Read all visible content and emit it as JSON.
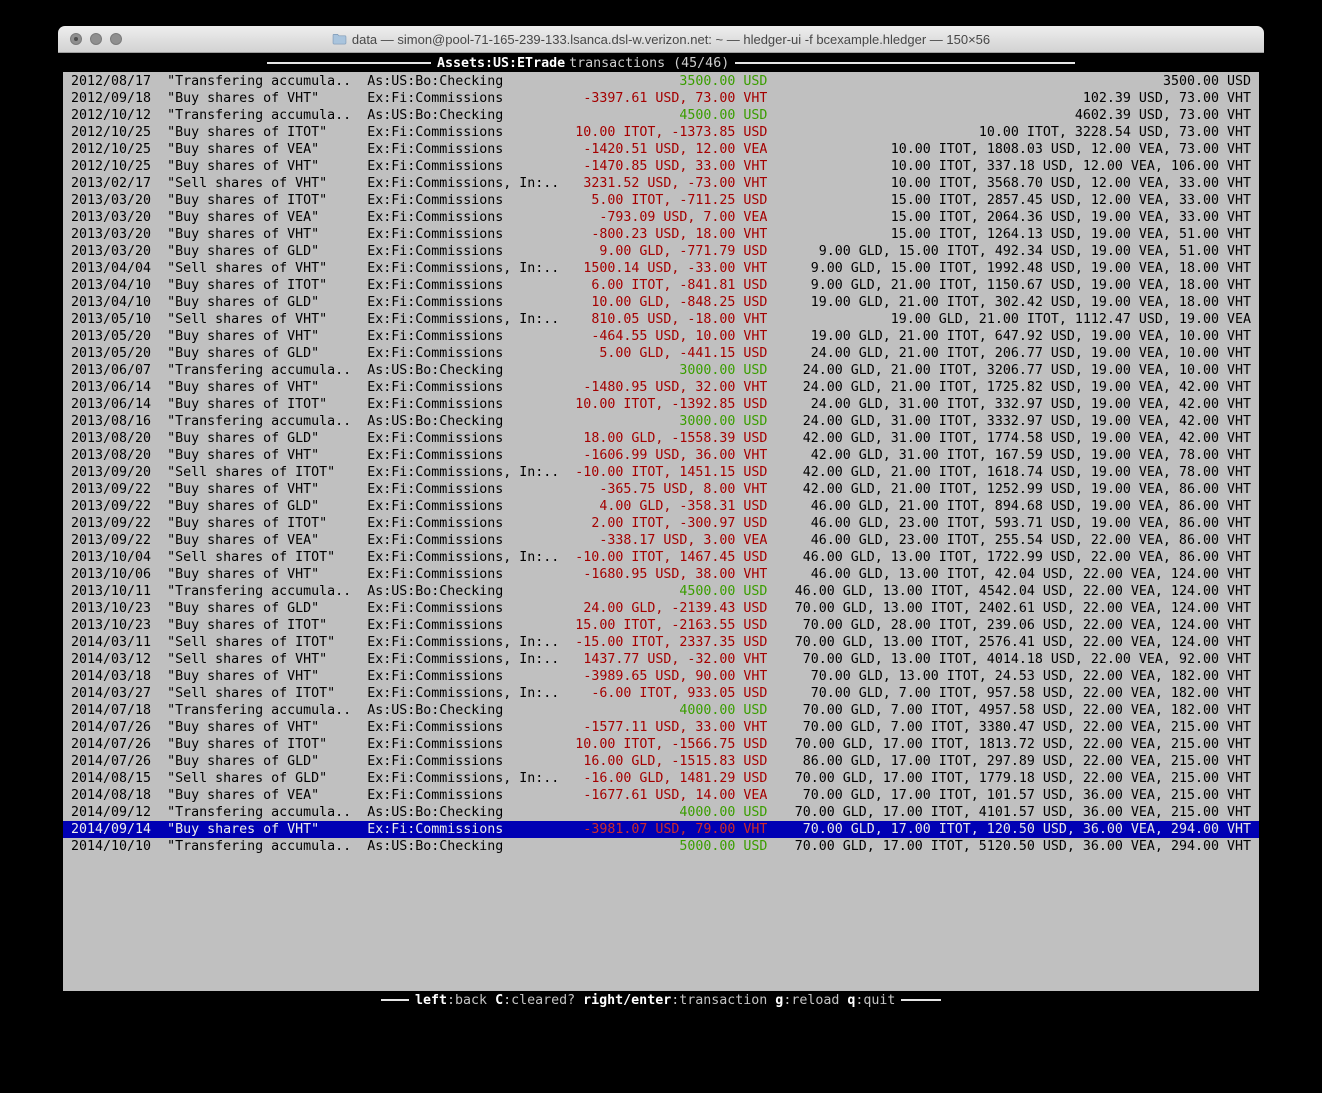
{
  "colors": {
    "terminal_bg": "#c0c0c0",
    "selection_bg": "#0000b4",
    "amount_negative": "#a40000",
    "amount_negative_selected": "#cc2a2a",
    "amount_positive": "#3a9d00"
  },
  "window": {
    "title": "data — simon@pool-71-165-239-133.lsanca.dsl-w.verizon.net: ~ — hledger-ui -f bcexample.hledger — 150×56"
  },
  "header": {
    "account": "Assets:US:ETrade",
    "label": "transactions (45/46)"
  },
  "footer": {
    "keys": [
      {
        "key": "left",
        "desc": ":back"
      },
      {
        "key": "C",
        "desc": ":cleared?"
      },
      {
        "key": "right/enter",
        "desc": ":transaction"
      },
      {
        "key": "g",
        "desc": ":reload"
      },
      {
        "key": "q",
        "desc": ":quit"
      }
    ]
  },
  "register": {
    "rows": [
      {
        "date": "2012/08/17",
        "desc": "\"Transfering accumula..",
        "acct": "As:US:Bo:Checking",
        "amt": "3500.00 USD",
        "sign": "pos",
        "bal": "3500.00 USD",
        "selected": false
      },
      {
        "date": "2012/09/18",
        "desc": "\"Buy shares of VHT\"",
        "acct": "Ex:Fi:Commissions",
        "amt": "-3397.61 USD, 73.00 VHT",
        "sign": "neg",
        "bal": "102.39 USD, 73.00 VHT",
        "selected": false
      },
      {
        "date": "2012/10/12",
        "desc": "\"Transfering accumula..",
        "acct": "As:US:Bo:Checking",
        "amt": "4500.00 USD",
        "sign": "pos",
        "bal": "4602.39 USD, 73.00 VHT",
        "selected": false
      },
      {
        "date": "2012/10/25",
        "desc": "\"Buy shares of ITOT\"",
        "acct": "Ex:Fi:Commissions",
        "amt": "10.00 ITOT, -1373.85 USD",
        "sign": "neg",
        "bal": "10.00 ITOT, 3228.54 USD, 73.00 VHT",
        "selected": false
      },
      {
        "date": "2012/10/25",
        "desc": "\"Buy shares of VEA\"",
        "acct": "Ex:Fi:Commissions",
        "amt": "-1420.51 USD, 12.00 VEA",
        "sign": "neg",
        "bal": "10.00 ITOT, 1808.03 USD, 12.00 VEA, 73.00 VHT",
        "selected": false
      },
      {
        "date": "2012/10/25",
        "desc": "\"Buy shares of VHT\"",
        "acct": "Ex:Fi:Commissions",
        "amt": "-1470.85 USD, 33.00 VHT",
        "sign": "neg",
        "bal": "10.00 ITOT, 337.18 USD, 12.00 VEA, 106.00 VHT",
        "selected": false
      },
      {
        "date": "2013/02/17",
        "desc": "\"Sell shares of VHT\"",
        "acct": "Ex:Fi:Commissions, In:..",
        "amt": "3231.52 USD, -73.00 VHT",
        "sign": "neg",
        "bal": "10.00 ITOT, 3568.70 USD, 12.00 VEA, 33.00 VHT",
        "selected": false
      },
      {
        "date": "2013/03/20",
        "desc": "\"Buy shares of ITOT\"",
        "acct": "Ex:Fi:Commissions",
        "amt": "5.00 ITOT, -711.25 USD",
        "sign": "neg",
        "bal": "15.00 ITOT, 2857.45 USD, 12.00 VEA, 33.00 VHT",
        "selected": false
      },
      {
        "date": "2013/03/20",
        "desc": "\"Buy shares of VEA\"",
        "acct": "Ex:Fi:Commissions",
        "amt": "-793.09 USD, 7.00 VEA",
        "sign": "neg",
        "bal": "15.00 ITOT, 2064.36 USD, 19.00 VEA, 33.00 VHT",
        "selected": false
      },
      {
        "date": "2013/03/20",
        "desc": "\"Buy shares of VHT\"",
        "acct": "Ex:Fi:Commissions",
        "amt": "-800.23 USD, 18.00 VHT",
        "sign": "neg",
        "bal": "15.00 ITOT, 1264.13 USD, 19.00 VEA, 51.00 VHT",
        "selected": false
      },
      {
        "date": "2013/03/20",
        "desc": "\"Buy shares of GLD\"",
        "acct": "Ex:Fi:Commissions",
        "amt": "9.00 GLD, -771.79 USD",
        "sign": "neg",
        "bal": "9.00 GLD, 15.00 ITOT, 492.34 USD, 19.00 VEA, 51.00 VHT",
        "selected": false
      },
      {
        "date": "2013/04/04",
        "desc": "\"Sell shares of VHT\"",
        "acct": "Ex:Fi:Commissions, In:..",
        "amt": "1500.14 USD, -33.00 VHT",
        "sign": "neg",
        "bal": "9.00 GLD, 15.00 ITOT, 1992.48 USD, 19.00 VEA, 18.00 VHT",
        "selected": false
      },
      {
        "date": "2013/04/10",
        "desc": "\"Buy shares of ITOT\"",
        "acct": "Ex:Fi:Commissions",
        "amt": "6.00 ITOT, -841.81 USD",
        "sign": "neg",
        "bal": "9.00 GLD, 21.00 ITOT, 1150.67 USD, 19.00 VEA, 18.00 VHT",
        "selected": false
      },
      {
        "date": "2013/04/10",
        "desc": "\"Buy shares of GLD\"",
        "acct": "Ex:Fi:Commissions",
        "amt": "10.00 GLD, -848.25 USD",
        "sign": "neg",
        "bal": "19.00 GLD, 21.00 ITOT, 302.42 USD, 19.00 VEA, 18.00 VHT",
        "selected": false
      },
      {
        "date": "2013/05/10",
        "desc": "\"Sell shares of VHT\"",
        "acct": "Ex:Fi:Commissions, In:..",
        "amt": "810.05 USD, -18.00 VHT",
        "sign": "neg",
        "bal": "19.00 GLD, 21.00 ITOT, 1112.47 USD, 19.00 VEA",
        "selected": false
      },
      {
        "date": "2013/05/20",
        "desc": "\"Buy shares of VHT\"",
        "acct": "Ex:Fi:Commissions",
        "amt": "-464.55 USD, 10.00 VHT",
        "sign": "neg",
        "bal": "19.00 GLD, 21.00 ITOT, 647.92 USD, 19.00 VEA, 10.00 VHT",
        "selected": false
      },
      {
        "date": "2013/05/20",
        "desc": "\"Buy shares of GLD\"",
        "acct": "Ex:Fi:Commissions",
        "amt": "5.00 GLD, -441.15 USD",
        "sign": "neg",
        "bal": "24.00 GLD, 21.00 ITOT, 206.77 USD, 19.00 VEA, 10.00 VHT",
        "selected": false
      },
      {
        "date": "2013/06/07",
        "desc": "\"Transfering accumula..",
        "acct": "As:US:Bo:Checking",
        "amt": "3000.00 USD",
        "sign": "pos",
        "bal": "24.00 GLD, 21.00 ITOT, 3206.77 USD, 19.00 VEA, 10.00 VHT",
        "selected": false
      },
      {
        "date": "2013/06/14",
        "desc": "\"Buy shares of VHT\"",
        "acct": "Ex:Fi:Commissions",
        "amt": "-1480.95 USD, 32.00 VHT",
        "sign": "neg",
        "bal": "24.00 GLD, 21.00 ITOT, 1725.82 USD, 19.00 VEA, 42.00 VHT",
        "selected": false
      },
      {
        "date": "2013/06/14",
        "desc": "\"Buy shares of ITOT\"",
        "acct": "Ex:Fi:Commissions",
        "amt": "10.00 ITOT, -1392.85 USD",
        "sign": "neg",
        "bal": "24.00 GLD, 31.00 ITOT, 332.97 USD, 19.00 VEA, 42.00 VHT",
        "selected": false
      },
      {
        "date": "2013/08/16",
        "desc": "\"Transfering accumula..",
        "acct": "As:US:Bo:Checking",
        "amt": "3000.00 USD",
        "sign": "pos",
        "bal": "24.00 GLD, 31.00 ITOT, 3332.97 USD, 19.00 VEA, 42.00 VHT",
        "selected": false
      },
      {
        "date": "2013/08/20",
        "desc": "\"Buy shares of GLD\"",
        "acct": "Ex:Fi:Commissions",
        "amt": "18.00 GLD, -1558.39 USD",
        "sign": "neg",
        "bal": "42.00 GLD, 31.00 ITOT, 1774.58 USD, 19.00 VEA, 42.00 VHT",
        "selected": false
      },
      {
        "date": "2013/08/20",
        "desc": "\"Buy shares of VHT\"",
        "acct": "Ex:Fi:Commissions",
        "amt": "-1606.99 USD, 36.00 VHT",
        "sign": "neg",
        "bal": "42.00 GLD, 31.00 ITOT, 167.59 USD, 19.00 VEA, 78.00 VHT",
        "selected": false
      },
      {
        "date": "2013/09/20",
        "desc": "\"Sell shares of ITOT\"",
        "acct": "Ex:Fi:Commissions, In:..",
        "amt": "-10.00 ITOT, 1451.15 USD",
        "sign": "neg",
        "bal": "42.00 GLD, 21.00 ITOT, 1618.74 USD, 19.00 VEA, 78.00 VHT",
        "selected": false
      },
      {
        "date": "2013/09/22",
        "desc": "\"Buy shares of VHT\"",
        "acct": "Ex:Fi:Commissions",
        "amt": "-365.75 USD, 8.00 VHT",
        "sign": "neg",
        "bal": "42.00 GLD, 21.00 ITOT, 1252.99 USD, 19.00 VEA, 86.00 VHT",
        "selected": false
      },
      {
        "date": "2013/09/22",
        "desc": "\"Buy shares of GLD\"",
        "acct": "Ex:Fi:Commissions",
        "amt": "4.00 GLD, -358.31 USD",
        "sign": "neg",
        "bal": "46.00 GLD, 21.00 ITOT, 894.68 USD, 19.00 VEA, 86.00 VHT",
        "selected": false
      },
      {
        "date": "2013/09/22",
        "desc": "\"Buy shares of ITOT\"",
        "acct": "Ex:Fi:Commissions",
        "amt": "2.00 ITOT, -300.97 USD",
        "sign": "neg",
        "bal": "46.00 GLD, 23.00 ITOT, 593.71 USD, 19.00 VEA, 86.00 VHT",
        "selected": false
      },
      {
        "date": "2013/09/22",
        "desc": "\"Buy shares of VEA\"",
        "acct": "Ex:Fi:Commissions",
        "amt": "-338.17 USD, 3.00 VEA",
        "sign": "neg",
        "bal": "46.00 GLD, 23.00 ITOT, 255.54 USD, 22.00 VEA, 86.00 VHT",
        "selected": false
      },
      {
        "date": "2013/10/04",
        "desc": "\"Sell shares of ITOT\"",
        "acct": "Ex:Fi:Commissions, In:..",
        "amt": "-10.00 ITOT, 1467.45 USD",
        "sign": "neg",
        "bal": "46.00 GLD, 13.00 ITOT, 1722.99 USD, 22.00 VEA, 86.00 VHT",
        "selected": false
      },
      {
        "date": "2013/10/06",
        "desc": "\"Buy shares of VHT\"",
        "acct": "Ex:Fi:Commissions",
        "amt": "-1680.95 USD, 38.00 VHT",
        "sign": "neg",
        "bal": "46.00 GLD, 13.00 ITOT, 42.04 USD, 22.00 VEA, 124.00 VHT",
        "selected": false
      },
      {
        "date": "2013/10/11",
        "desc": "\"Transfering accumula..",
        "acct": "As:US:Bo:Checking",
        "amt": "4500.00 USD",
        "sign": "pos",
        "bal": "46.00 GLD, 13.00 ITOT, 4542.04 USD, 22.00 VEA, 124.00 VHT",
        "selected": false
      },
      {
        "date": "2013/10/23",
        "desc": "\"Buy shares of GLD\"",
        "acct": "Ex:Fi:Commissions",
        "amt": "24.00 GLD, -2139.43 USD",
        "sign": "neg",
        "bal": "70.00 GLD, 13.00 ITOT, 2402.61 USD, 22.00 VEA, 124.00 VHT",
        "selected": false
      },
      {
        "date": "2013/10/23",
        "desc": "\"Buy shares of ITOT\"",
        "acct": "Ex:Fi:Commissions",
        "amt": "15.00 ITOT, -2163.55 USD",
        "sign": "neg",
        "bal": "70.00 GLD, 28.00 ITOT, 239.06 USD, 22.00 VEA, 124.00 VHT",
        "selected": false
      },
      {
        "date": "2014/03/11",
        "desc": "\"Sell shares of ITOT\"",
        "acct": "Ex:Fi:Commissions, In:..",
        "amt": "-15.00 ITOT, 2337.35 USD",
        "sign": "neg",
        "bal": "70.00 GLD, 13.00 ITOT, 2576.41 USD, 22.00 VEA, 124.00 VHT",
        "selected": false
      },
      {
        "date": "2014/03/12",
        "desc": "\"Sell shares of VHT\"",
        "acct": "Ex:Fi:Commissions, In:..",
        "amt": "1437.77 USD, -32.00 VHT",
        "sign": "neg",
        "bal": "70.00 GLD, 13.00 ITOT, 4014.18 USD, 22.00 VEA, 92.00 VHT",
        "selected": false
      },
      {
        "date": "2014/03/18",
        "desc": "\"Buy shares of VHT\"",
        "acct": "Ex:Fi:Commissions",
        "amt": "-3989.65 USD, 90.00 VHT",
        "sign": "neg",
        "bal": "70.00 GLD, 13.00 ITOT, 24.53 USD, 22.00 VEA, 182.00 VHT",
        "selected": false
      },
      {
        "date": "2014/03/27",
        "desc": "\"Sell shares of ITOT\"",
        "acct": "Ex:Fi:Commissions, In:..",
        "amt": "-6.00 ITOT, 933.05 USD",
        "sign": "neg",
        "bal": "70.00 GLD, 7.00 ITOT, 957.58 USD, 22.00 VEA, 182.00 VHT",
        "selected": false
      },
      {
        "date": "2014/07/18",
        "desc": "\"Transfering accumula..",
        "acct": "As:US:Bo:Checking",
        "amt": "4000.00 USD",
        "sign": "pos",
        "bal": "70.00 GLD, 7.00 ITOT, 4957.58 USD, 22.00 VEA, 182.00 VHT",
        "selected": false
      },
      {
        "date": "2014/07/26",
        "desc": "\"Buy shares of VHT\"",
        "acct": "Ex:Fi:Commissions",
        "amt": "-1577.11 USD, 33.00 VHT",
        "sign": "neg",
        "bal": "70.00 GLD, 7.00 ITOT, 3380.47 USD, 22.00 VEA, 215.00 VHT",
        "selected": false
      },
      {
        "date": "2014/07/26",
        "desc": "\"Buy shares of ITOT\"",
        "acct": "Ex:Fi:Commissions",
        "amt": "10.00 ITOT, -1566.75 USD",
        "sign": "neg",
        "bal": "70.00 GLD, 17.00 ITOT, 1813.72 USD, 22.00 VEA, 215.00 VHT",
        "selected": false
      },
      {
        "date": "2014/07/26",
        "desc": "\"Buy shares of GLD\"",
        "acct": "Ex:Fi:Commissions",
        "amt": "16.00 GLD, -1515.83 USD",
        "sign": "neg",
        "bal": "86.00 GLD, 17.00 ITOT, 297.89 USD, 22.00 VEA, 215.00 VHT",
        "selected": false
      },
      {
        "date": "2014/08/15",
        "desc": "\"Sell shares of GLD\"",
        "acct": "Ex:Fi:Commissions, In:..",
        "amt": "-16.00 GLD, 1481.29 USD",
        "sign": "neg",
        "bal": "70.00 GLD, 17.00 ITOT, 1779.18 USD, 22.00 VEA, 215.00 VHT",
        "selected": false
      },
      {
        "date": "2014/08/18",
        "desc": "\"Buy shares of VEA\"",
        "acct": "Ex:Fi:Commissions",
        "amt": "-1677.61 USD, 14.00 VEA",
        "sign": "neg",
        "bal": "70.00 GLD, 17.00 ITOT, 101.57 USD, 36.00 VEA, 215.00 VHT",
        "selected": false
      },
      {
        "date": "2014/09/12",
        "desc": "\"Transfering accumula..",
        "acct": "As:US:Bo:Checking",
        "amt": "4000.00 USD",
        "sign": "pos",
        "bal": "70.00 GLD, 17.00 ITOT, 4101.57 USD, 36.00 VEA, 215.00 VHT",
        "selected": false
      },
      {
        "date": "2014/09/14",
        "desc": "\"Buy shares of VHT\"",
        "acct": "Ex:Fi:Commissions",
        "amt": "-3981.07 USD, 79.00 VHT",
        "sign": "neg",
        "bal": "70.00 GLD, 17.00 ITOT, 120.50 USD, 36.00 VEA, 294.00 VHT",
        "selected": true
      },
      {
        "date": "2014/10/10",
        "desc": "\"Transfering accumula..",
        "acct": "As:US:Bo:Checking",
        "amt": "5000.00 USD",
        "sign": "pos",
        "bal": "70.00 GLD, 17.00 ITOT, 5120.50 USD, 36.00 VEA, 294.00 VHT",
        "selected": false
      }
    ]
  }
}
